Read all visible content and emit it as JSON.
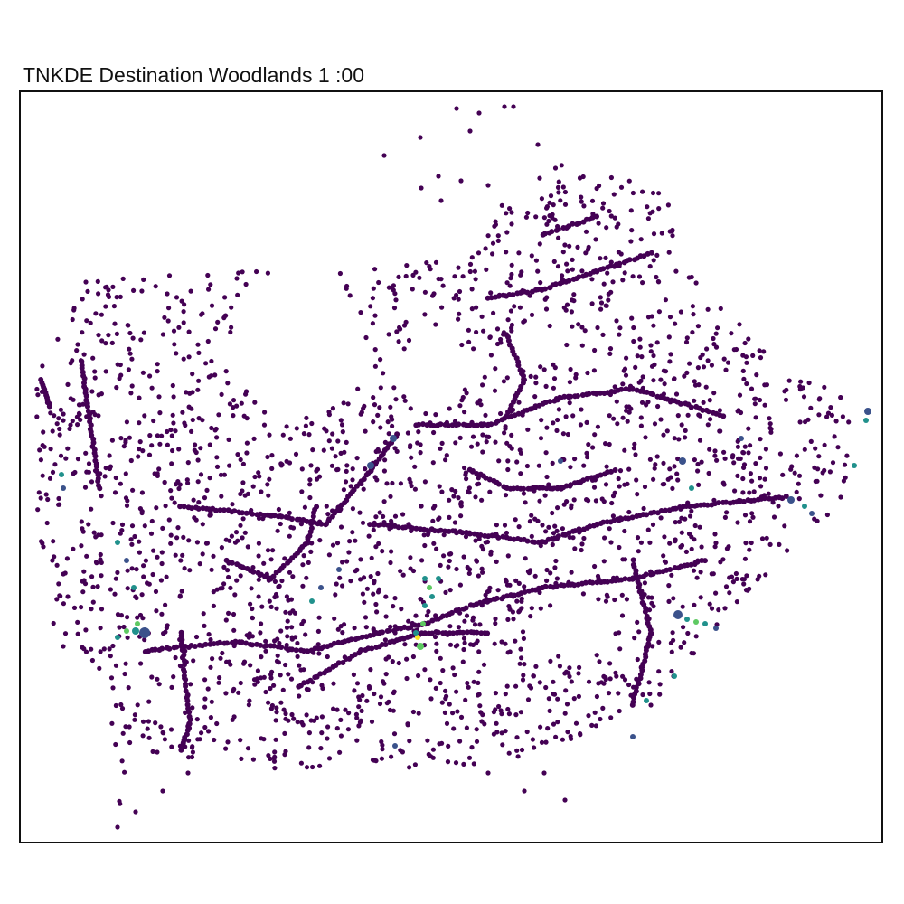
{
  "title": "TNKDE Destination Woodlands 1 :00",
  "colors": {
    "low": "#440154",
    "low_mid": "#3b528b",
    "mid": "#21918c",
    "high_mid": "#5ec962",
    "high": "#fde725"
  },
  "legend_present": false,
  "density_hotspots": [
    "west-junction",
    "central-south-corridor",
    "east-south-node",
    "east-edge"
  ]
}
